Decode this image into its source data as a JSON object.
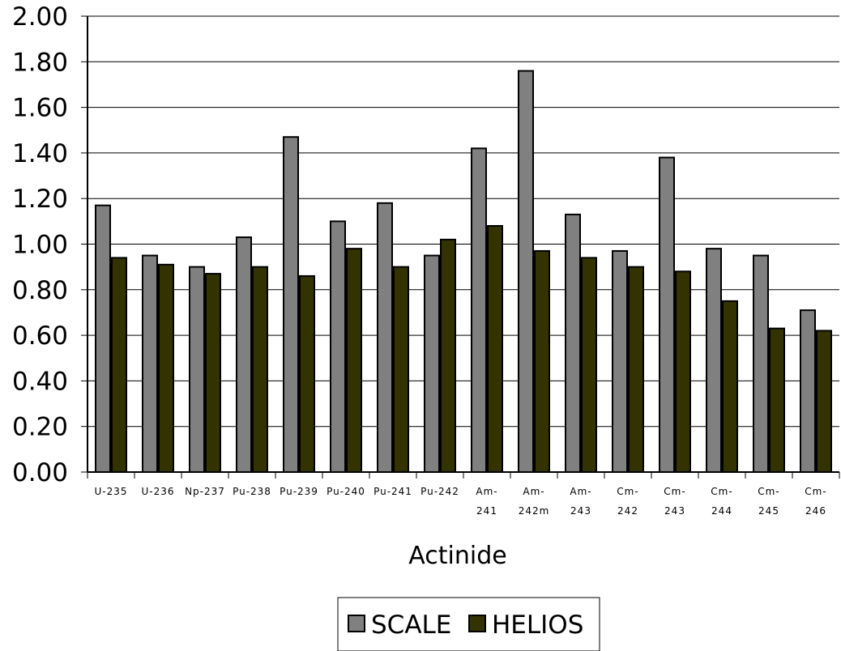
{
  "chart_data": {
    "type": "bar",
    "title": "",
    "xlabel": "Actinide",
    "ylabel": "",
    "ylim": [
      0,
      2.0
    ],
    "yticks": [
      "0.00",
      "0.20",
      "0.40",
      "0.60",
      "0.80",
      "1.00",
      "1.20",
      "1.40",
      "1.60",
      "1.80",
      "2.00"
    ],
    "grid": "horizontal",
    "legend_position": "bottom-center",
    "categories": [
      [
        "U-235"
      ],
      [
        "U-236"
      ],
      [
        "Np-237"
      ],
      [
        "Pu-238"
      ],
      [
        "Pu-239"
      ],
      [
        "Pu-240"
      ],
      [
        "Pu-241"
      ],
      [
        "Pu-242"
      ],
      [
        "Am-",
        "241"
      ],
      [
        "Am-",
        "242m"
      ],
      [
        "Am-",
        "243"
      ],
      [
        "Cm-",
        "242"
      ],
      [
        "Cm-",
        "243"
      ],
      [
        "Cm-",
        "244"
      ],
      [
        "Cm-",
        "245"
      ],
      [
        "Cm-",
        "246"
      ]
    ],
    "series": [
      {
        "name": "SCALE",
        "color": "#808080",
        "values": [
          1.17,
          0.95,
          0.9,
          1.03,
          1.47,
          1.1,
          1.18,
          0.95,
          1.42,
          1.76,
          1.13,
          0.97,
          1.38,
          0.98,
          0.95,
          0.71
        ]
      },
      {
        "name": "HELIOS",
        "color": "#333300",
        "values": [
          0.94,
          0.91,
          0.87,
          0.9,
          0.86,
          0.98,
          0.9,
          1.02,
          1.08,
          0.97,
          0.94,
          0.9,
          0.88,
          0.75,
          0.63,
          0.62
        ]
      }
    ]
  }
}
